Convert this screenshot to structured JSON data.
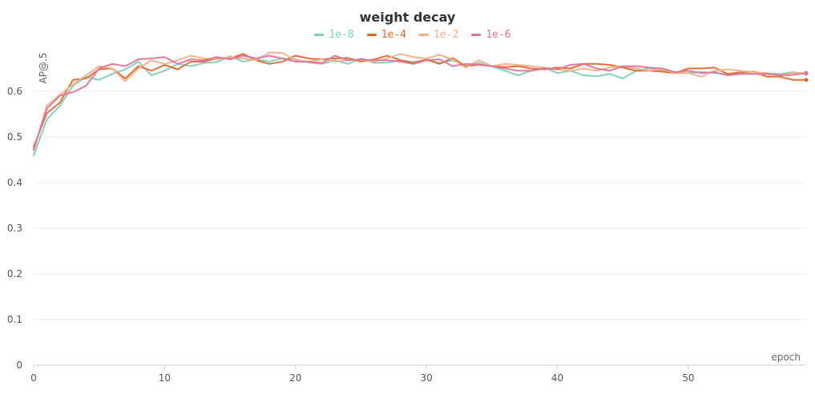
{
  "chart_data": {
    "type": "line",
    "title": "weight decay",
    "xlabel": "epoch",
    "ylabel": "AP@.5",
    "xlim": [
      0,
      59
    ],
    "ylim": [
      0,
      0.7
    ],
    "xticks": [
      0,
      10,
      20,
      30,
      40,
      50
    ],
    "yticks": [
      0,
      0.1,
      0.2,
      0.3,
      0.4,
      0.5,
      0.6
    ],
    "grid": "horizontal",
    "legend_position": "top-center",
    "x": [
      0,
      1,
      2,
      3,
      4,
      5,
      6,
      7,
      8,
      9,
      10,
      11,
      12,
      13,
      14,
      15,
      16,
      17,
      18,
      19,
      20,
      21,
      22,
      23,
      24,
      25,
      26,
      27,
      28,
      29,
      30,
      31,
      32,
      33,
      34,
      35,
      36,
      37,
      38,
      39,
      40,
      41,
      42,
      43,
      44,
      45,
      46,
      47,
      48,
      49,
      50,
      51,
      52,
      53,
      54,
      55,
      56,
      57,
      58,
      59
    ],
    "series": [
      {
        "name": "1e-8",
        "color": "#7ccfbb",
        "values": [
          0.459,
          0.538,
          0.568,
          0.612,
          0.632,
          0.625,
          0.638,
          0.648,
          0.665,
          0.635,
          0.645,
          0.66,
          0.655,
          0.662,
          0.664,
          0.677,
          0.665,
          0.67,
          0.665,
          0.672,
          0.67,
          0.663,
          0.66,
          0.668,
          0.66,
          0.672,
          0.662,
          0.663,
          0.668,
          0.664,
          0.668,
          0.662,
          0.668,
          0.655,
          0.662,
          0.655,
          0.645,
          0.635,
          0.645,
          0.652,
          0.64,
          0.645,
          0.635,
          0.633,
          0.638,
          0.628,
          0.645,
          0.65,
          0.645,
          0.64,
          0.64,
          0.642,
          0.64,
          0.638,
          0.64,
          0.638,
          0.64,
          0.638,
          0.642,
          0.638
        ]
      },
      {
        "name": "1e-4",
        "color": "#e2692c",
        "values": [
          0.478,
          0.552,
          0.575,
          0.625,
          0.628,
          0.648,
          0.65,
          0.628,
          0.655,
          0.645,
          0.658,
          0.648,
          0.665,
          0.665,
          0.672,
          0.672,
          0.682,
          0.668,
          0.66,
          0.665,
          0.678,
          0.672,
          0.67,
          0.672,
          0.673,
          0.665,
          0.67,
          0.678,
          0.668,
          0.662,
          0.67,
          0.66,
          0.673,
          0.655,
          0.658,
          0.655,
          0.653,
          0.655,
          0.65,
          0.648,
          0.652,
          0.65,
          0.66,
          0.66,
          0.658,
          0.652,
          0.645,
          0.645,
          0.643,
          0.64,
          0.65,
          0.65,
          0.652,
          0.638,
          0.642,
          0.643,
          0.632,
          0.632,
          0.625,
          0.625
        ]
      },
      {
        "name": "1e-2",
        "color": "#f3b089",
        "values": [
          0.47,
          0.568,
          0.592,
          0.615,
          0.635,
          0.655,
          0.65,
          0.622,
          0.65,
          0.668,
          0.66,
          0.668,
          0.678,
          0.672,
          0.67,
          0.675,
          0.672,
          0.668,
          0.685,
          0.684,
          0.668,
          0.665,
          0.67,
          0.665,
          0.668,
          0.67,
          0.665,
          0.672,
          0.682,
          0.675,
          0.672,
          0.68,
          0.67,
          0.652,
          0.668,
          0.655,
          0.66,
          0.658,
          0.655,
          0.652,
          0.648,
          0.645,
          0.65,
          0.645,
          0.652,
          0.655,
          0.65,
          0.645,
          0.648,
          0.64,
          0.64,
          0.632,
          0.645,
          0.648,
          0.645,
          0.642,
          0.64,
          0.635,
          0.64,
          0.64
        ]
      },
      {
        "name": "1e-6",
        "color": "#e0739a",
        "values": [
          0.472,
          0.562,
          0.59,
          0.598,
          0.612,
          0.65,
          0.66,
          0.655,
          0.67,
          0.672,
          0.675,
          0.66,
          0.67,
          0.668,
          0.675,
          0.67,
          0.678,
          0.672,
          0.678,
          0.672,
          0.665,
          0.665,
          0.662,
          0.678,
          0.668,
          0.67,
          0.668,
          0.668,
          0.665,
          0.66,
          0.668,
          0.67,
          0.655,
          0.66,
          0.658,
          0.655,
          0.65,
          0.645,
          0.645,
          0.65,
          0.648,
          0.658,
          0.66,
          0.65,
          0.645,
          0.655,
          0.655,
          0.652,
          0.65,
          0.642,
          0.645,
          0.64,
          0.642,
          0.635,
          0.638,
          0.638,
          0.638,
          0.635,
          0.636,
          0.64
        ]
      }
    ]
  }
}
